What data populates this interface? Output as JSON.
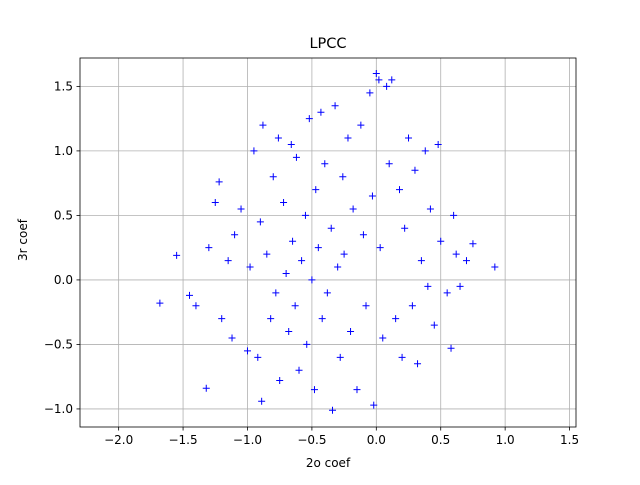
{
  "chart_data": {
    "type": "scatter",
    "title": "LPCC",
    "xlabel": "2o coef",
    "ylabel": "3r coef",
    "xlim": [
      -2.3,
      1.55
    ],
    "ylim": [
      -1.14,
      1.72
    ],
    "xticks": [
      -2.0,
      -1.5,
      -1.0,
      -0.5,
      0.0,
      0.5,
      1.0,
      1.5
    ],
    "xtick_labels": [
      "−2.0",
      "−1.5",
      "−1.0",
      "−0.5",
      "0.0",
      "0.5",
      "1.0",
      "1.5"
    ],
    "yticks": [
      -1.0,
      -0.5,
      0.0,
      0.5,
      1.0,
      1.5
    ],
    "ytick_labels": [
      "−1.0",
      "−0.5",
      "0.0",
      "0.5",
      "1.0",
      "1.5"
    ],
    "grid": true,
    "marker": "+",
    "color": "#0000ff",
    "series": [
      {
        "points": [
          [
            -1.68,
            -0.18
          ],
          [
            -1.55,
            0.19
          ],
          [
            -1.45,
            -0.12
          ],
          [
            -1.4,
            -0.2
          ],
          [
            -1.32,
            -0.84
          ],
          [
            -1.3,
            0.25
          ],
          [
            -1.25,
            0.6
          ],
          [
            -1.22,
            0.76
          ],
          [
            -1.2,
            -0.3
          ],
          [
            -1.15,
            0.15
          ],
          [
            -1.12,
            -0.45
          ],
          [
            -1.1,
            0.35
          ],
          [
            -1.05,
            0.55
          ],
          [
            -1.0,
            -0.55
          ],
          [
            -0.98,
            0.1
          ],
          [
            -0.95,
            1.0
          ],
          [
            -0.92,
            -0.6
          ],
          [
            -0.9,
            0.45
          ],
          [
            -0.89,
            -0.94
          ],
          [
            -0.88,
            1.2
          ],
          [
            -0.85,
            0.2
          ],
          [
            -0.82,
            -0.3
          ],
          [
            -0.8,
            0.8
          ],
          [
            -0.78,
            -0.1
          ],
          [
            -0.76,
            1.1
          ],
          [
            -0.75,
            -0.78
          ],
          [
            -0.72,
            0.6
          ],
          [
            -0.7,
            0.05
          ],
          [
            -0.68,
            -0.4
          ],
          [
            -0.66,
            1.05
          ],
          [
            -0.65,
            0.3
          ],
          [
            -0.63,
            -0.2
          ],
          [
            -0.62,
            0.95
          ],
          [
            -0.6,
            -0.7
          ],
          [
            -0.58,
            0.15
          ],
          [
            -0.55,
            0.5
          ],
          [
            -0.54,
            -0.5
          ],
          [
            -0.52,
            1.25
          ],
          [
            -0.5,
            0.0
          ],
          [
            -0.48,
            -0.85
          ],
          [
            -0.47,
            0.7
          ],
          [
            -0.45,
            0.25
          ],
          [
            -0.43,
            1.3
          ],
          [
            -0.42,
            -0.3
          ],
          [
            -0.4,
            0.9
          ],
          [
            -0.38,
            -0.1
          ],
          [
            -0.35,
            0.4
          ],
          [
            -0.34,
            -1.01
          ],
          [
            -0.32,
            1.35
          ],
          [
            -0.3,
            0.1
          ],
          [
            -0.28,
            -0.6
          ],
          [
            -0.26,
            0.8
          ],
          [
            -0.25,
            0.2
          ],
          [
            -0.22,
            1.1
          ],
          [
            -0.2,
            -0.4
          ],
          [
            -0.18,
            0.55
          ],
          [
            -0.15,
            -0.85
          ],
          [
            -0.12,
            1.2
          ],
          [
            -0.1,
            0.35
          ],
          [
            -0.08,
            -0.2
          ],
          [
            -0.05,
            1.45
          ],
          [
            -0.03,
            0.65
          ],
          [
            -0.02,
            -0.97
          ],
          [
            0.0,
            1.6
          ],
          [
            0.02,
            1.55
          ],
          [
            0.03,
            0.25
          ],
          [
            0.05,
            -0.45
          ],
          [
            0.08,
            1.5
          ],
          [
            0.1,
            0.9
          ],
          [
            0.12,
            1.55
          ],
          [
            0.15,
            -0.3
          ],
          [
            0.18,
            0.7
          ],
          [
            0.2,
            -0.6
          ],
          [
            0.22,
            0.4
          ],
          [
            0.25,
            1.1
          ],
          [
            0.28,
            -0.2
          ],
          [
            0.3,
            0.85
          ],
          [
            0.32,
            -0.65
          ],
          [
            0.35,
            0.15
          ],
          [
            0.38,
            1.0
          ],
          [
            0.4,
            -0.05
          ],
          [
            0.42,
            0.55
          ],
          [
            0.45,
            -0.35
          ],
          [
            0.48,
            1.05
          ],
          [
            0.5,
            0.3
          ],
          [
            0.55,
            -0.1
          ],
          [
            0.58,
            -0.53
          ],
          [
            0.6,
            0.5
          ],
          [
            0.62,
            0.2
          ],
          [
            0.65,
            -0.05
          ],
          [
            0.7,
            0.15
          ],
          [
            0.75,
            0.28
          ],
          [
            0.92,
            0.1
          ]
        ]
      }
    ]
  }
}
